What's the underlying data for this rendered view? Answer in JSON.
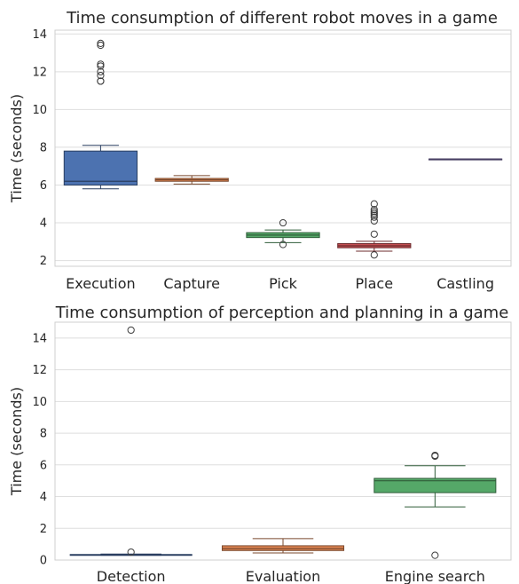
{
  "chart_data": [
    {
      "type": "box",
      "title": "Time consumption of different robot moves in a game",
      "xlabel": "",
      "ylabel": "Time (seconds)",
      "ylim": [
        1.7,
        14.2
      ],
      "yticks": [
        2,
        4,
        6,
        8,
        10,
        12,
        14
      ],
      "grid": true,
      "categories": [
        "Execution",
        "Capture",
        "Pick",
        "Place",
        "Castling"
      ],
      "boxes": [
        {
          "label": "Execution",
          "color": "#4c72b0",
          "whislo": 5.8,
          "q1": 6.0,
          "med": 6.2,
          "q3": 7.8,
          "whishi": 8.1,
          "fliers": [
            11.5,
            11.5,
            11.8,
            12.0,
            12.3,
            12.4,
            13.4,
            13.5
          ]
        },
        {
          "label": "Capture",
          "color": "#dd8452",
          "whislo": 6.05,
          "q1": 6.2,
          "med": 6.28,
          "q3": 6.35,
          "whishi": 6.5,
          "fliers": []
        },
        {
          "label": "Pick",
          "color": "#55a868",
          "whislo": 2.95,
          "q1": 3.22,
          "med": 3.35,
          "q3": 3.48,
          "whishi": 3.62,
          "fliers": [
            2.85,
            4.0
          ]
        },
        {
          "label": "Place",
          "color": "#c44e52",
          "whislo": 2.5,
          "q1": 2.68,
          "med": 2.78,
          "q3": 2.9,
          "whishi": 3.02,
          "fliers": [
            2.3,
            3.4,
            4.1,
            4.3,
            4.4,
            4.5,
            4.6,
            4.7,
            5.0
          ]
        },
        {
          "label": "Castling",
          "color": "#8172b3",
          "whislo": 7.38,
          "q1": 7.38,
          "med": 7.38,
          "q3": 7.38,
          "whishi": 7.38,
          "fliers": []
        }
      ]
    },
    {
      "type": "box",
      "title": "Time consumption of perception and planning in a game",
      "xlabel": "",
      "ylabel": "Time (seconds)",
      "ylim": [
        0,
        15.0
      ],
      "yticks": [
        0,
        2,
        4,
        6,
        8,
        10,
        12,
        14
      ],
      "grid": true,
      "categories": [
        "Detection",
        "Evaluation",
        "Engine search"
      ],
      "boxes": [
        {
          "label": "Detection",
          "color": "#4c72b0",
          "whislo": 0.3,
          "q1": 0.32,
          "med": 0.33,
          "q3": 0.35,
          "whishi": 0.38,
          "fliers": [
            0.5,
            14.5
          ]
        },
        {
          "label": "Evaluation",
          "color": "#dd8452",
          "whislo": 0.45,
          "q1": 0.6,
          "med": 0.72,
          "q3": 0.9,
          "whishi": 1.35,
          "fliers": []
        },
        {
          "label": "Engine search",
          "color": "#55a868",
          "whislo": 3.35,
          "q1": 4.25,
          "med": 5.0,
          "q3": 5.15,
          "whishi": 5.95,
          "fliers": [
            0.3,
            6.55,
            6.6
          ]
        }
      ]
    }
  ]
}
